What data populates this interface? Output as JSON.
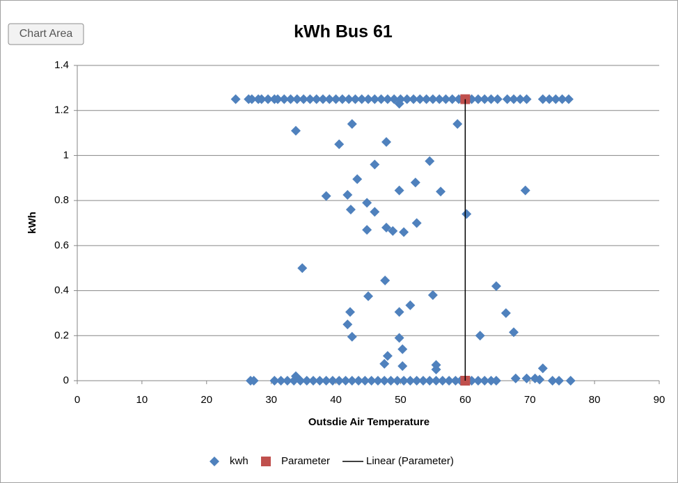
{
  "tooltip": "Chart Area",
  "chart_data": {
    "type": "scatter",
    "title": "kWh Bus 61",
    "x_label": "Outsdie Air Temperature",
    "y_label": "kWh",
    "xlim": [
      0,
      90
    ],
    "xticks": [
      0,
      10,
      20,
      30,
      40,
      50,
      60,
      70,
      80,
      90
    ],
    "ylim": [
      0,
      1.4
    ],
    "yticks": [
      0,
      0.2,
      0.4,
      0.6,
      0.8,
      1,
      1.2,
      1.4
    ],
    "grid": true,
    "legend": "bottom",
    "series": [
      {
        "name": "kwh",
        "color": "#4f81bd",
        "marker": "diamond",
        "x": [
          24.5,
          26.5,
          27,
          28,
          28.5,
          29.5,
          30.5,
          31,
          32,
          33,
          34,
          35,
          36,
          37,
          38,
          39,
          40,
          41,
          42,
          43,
          44,
          45,
          46,
          47,
          48,
          49,
          50,
          51,
          52,
          53,
          54,
          55,
          56,
          57,
          58,
          59,
          61,
          62,
          63,
          64,
          65,
          66.5,
          67.5,
          68.5,
          69.5,
          72,
          73,
          74,
          75,
          76,
          26.8,
          27.3,
          30.5,
          31.5,
          32.5,
          33.5,
          34.5,
          35.5,
          36.5,
          37.5,
          38.5,
          39.5,
          40.5,
          41.5,
          42.5,
          43.5,
          44.5,
          45.5,
          46.5,
          47.5,
          48.5,
          49.5,
          50.5,
          51.5,
          52.5,
          53.5,
          54.5,
          55.5,
          56.5,
          57.5,
          58.5,
          59.3,
          61,
          62,
          63,
          64,
          64.8,
          73.5,
          74.5,
          76.3,
          33.8,
          40.5,
          42.5,
          47.8,
          58.8,
          54.5,
          46,
          43.3,
          38.5,
          41.8,
          44.8,
          42.3,
          46,
          49.8,
          52.3,
          56.2,
          69.3,
          60.2,
          52.5,
          47.8,
          44.8,
          48.8,
          50.5,
          34.8,
          47.6,
          45,
          55,
          64.8,
          51.5,
          42.2,
          49.8,
          66.3,
          41.8,
          42.5,
          49.8,
          67.5,
          62.3,
          50.3,
          48,
          47.5,
          50.3,
          55.5,
          55.5,
          72,
          33.8,
          67.8,
          69.5,
          70.8,
          71.5,
          49.8
        ],
        "y": [
          1.25,
          1.25,
          1.25,
          1.25,
          1.25,
          1.25,
          1.25,
          1.25,
          1.25,
          1.25,
          1.25,
          1.25,
          1.25,
          1.25,
          1.25,
          1.25,
          1.25,
          1.25,
          1.25,
          1.25,
          1.25,
          1.25,
          1.25,
          1.25,
          1.25,
          1.25,
          1.25,
          1.25,
          1.25,
          1.25,
          1.25,
          1.25,
          1.25,
          1.25,
          1.25,
          1.25,
          1.25,
          1.25,
          1.25,
          1.25,
          1.25,
          1.25,
          1.25,
          1.25,
          1.25,
          1.25,
          1.25,
          1.25,
          1.25,
          1.25,
          0,
          0,
          0,
          0,
          0,
          0,
          0,
          0,
          0,
          0,
          0,
          0,
          0,
          0,
          0,
          0,
          0,
          0,
          0,
          0,
          0,
          0,
          0,
          0,
          0,
          0,
          0,
          0,
          0,
          0,
          0,
          0,
          0,
          0,
          0,
          0,
          0,
          0,
          0,
          0,
          1.11,
          1.05,
          1.14,
          1.06,
          1.14,
          0.975,
          0.96,
          0.895,
          0.82,
          0.825,
          0.79,
          0.76,
          0.75,
          0.845,
          0.88,
          0.84,
          0.845,
          0.74,
          0.7,
          0.68,
          0.67,
          0.665,
          0.66,
          0.5,
          0.445,
          0.375,
          0.38,
          0.42,
          0.335,
          0.305,
          0.305,
          0.3,
          0.25,
          0.195,
          0.19,
          0.215,
          0.2,
          0.14,
          0.11,
          0.075,
          0.065,
          0.07,
          0.05,
          0.055,
          0.02,
          0.01,
          0.01,
          0.01,
          0.005,
          1.23
        ]
      },
      {
        "name": "Parameter",
        "color": "#c0504d",
        "marker": "square",
        "x": [
          60,
          60
        ],
        "y": [
          1.25,
          0
        ]
      },
      {
        "name": "Linear (Parameter)",
        "color": "#000000",
        "marker": "line",
        "x": [
          60,
          60
        ],
        "y": [
          1.25,
          0
        ]
      }
    ]
  }
}
